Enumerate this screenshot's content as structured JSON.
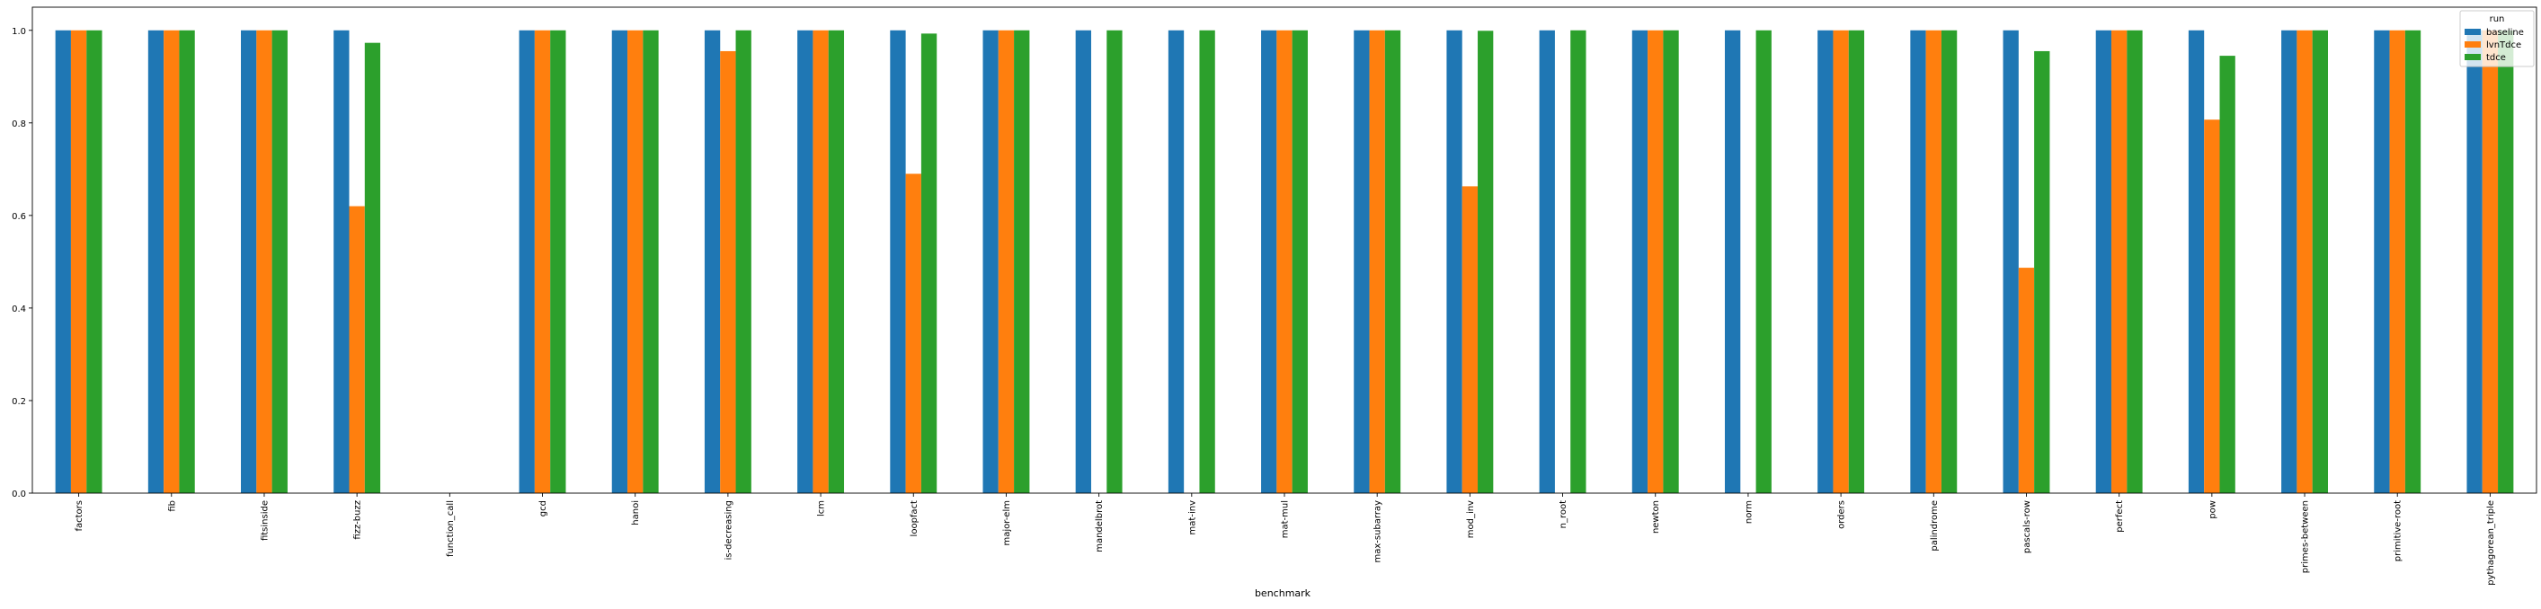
{
  "chart_data": {
    "type": "bar",
    "title": "",
    "xlabel": "benchmark",
    "ylabel": "",
    "ylim": [
      0,
      1.05
    ],
    "yticks": [
      "0.0",
      "0.2",
      "0.4",
      "0.6",
      "0.8",
      "1.0"
    ],
    "grid": false,
    "legend": {
      "title": "run",
      "placement": "top-right"
    },
    "categories": [
      "factors",
      "fib",
      "fitsinside",
      "fizz-buzz",
      "function_call",
      "gcd",
      "hanoi",
      "is-decreasing",
      "lcm",
      "loopfact",
      "major-elm",
      "mandelbrot",
      "mat-inv",
      "mat-mul",
      "max-subarray",
      "mod_inv",
      "n_root",
      "newton",
      "norm",
      "orders",
      "palindrome",
      "pascals-row",
      "perfect",
      "pow",
      "primes-between",
      "primitive-root",
      "pythagorean_triple"
    ],
    "series": [
      {
        "name": "baseline",
        "color": "#1f77b4",
        "values": [
          1,
          1,
          1,
          1,
          0,
          1,
          1,
          1,
          1,
          1,
          1,
          1,
          1,
          1,
          1,
          1,
          1,
          1,
          1,
          1,
          1,
          1,
          1,
          1,
          1,
          1,
          1
        ]
      },
      {
        "name": "lvnTdce",
        "color": "#ff7f0e",
        "values": [
          1,
          1,
          1,
          0.62,
          0,
          1,
          1,
          0.955,
          1,
          0.69,
          1,
          0,
          0,
          1,
          1,
          0.663,
          0,
          1,
          0,
          1,
          1,
          0.487,
          1,
          0.807,
          1,
          1,
          1
        ]
      },
      {
        "name": "tdce",
        "color": "#2ca02c",
        "values": [
          1,
          1,
          1,
          0.973,
          0,
          1,
          1,
          1,
          1,
          0.993,
          1,
          1,
          1,
          1,
          1,
          0.999,
          1,
          1,
          1,
          1,
          1,
          0.955,
          1,
          0.945,
          1,
          1,
          1
        ]
      }
    ]
  }
}
